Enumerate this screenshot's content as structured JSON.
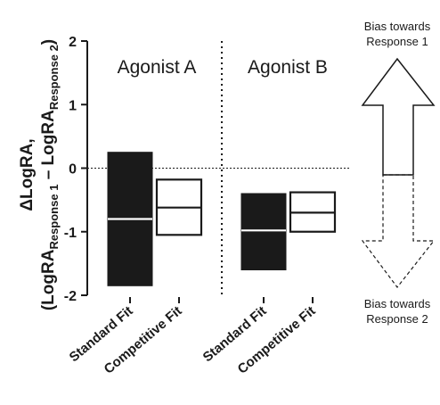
{
  "chart_data": {
    "type": "floating-bar",
    "ylabel_delta": "Δ",
    "ylabel_main": "LogRA,",
    "ylabel_open": "(LogRA",
    "ylabel_sub1": "Response 1",
    "ylabel_dash": " – LogRA",
    "ylabel_sub2": "Response 2",
    "ylabel_close": ")",
    "ylim": [
      -2,
      2
    ],
    "yticks": [
      "2",
      "1",
      "0",
      "-1",
      "-2"
    ],
    "reference_line": 0,
    "groups": [
      {
        "label": "Agonist A",
        "bars": [
          {
            "category": "Standard Fit",
            "min": -1.85,
            "max": 0.25,
            "mean": -0.8,
            "fill": "#1a1a1a"
          },
          {
            "category": "Competitive Fit",
            "min": -1.05,
            "max": -0.18,
            "mean": -0.62,
            "fill": "#ffffff"
          }
        ]
      },
      {
        "label": "Agonist B",
        "bars": [
          {
            "category": "Standard Fit",
            "min": -1.6,
            "max": -0.4,
            "mean": -0.98,
            "fill": "#1a1a1a"
          },
          {
            "category": "Competitive Fit",
            "min": -1.0,
            "max": -0.38,
            "mean": -0.7,
            "fill": "#ffffff"
          }
        ]
      }
    ],
    "annotations": {
      "up_line1": "Bias towards",
      "up_line2": "Response 1",
      "down_line1": "Bias towards",
      "down_line2": "Response 2"
    }
  }
}
